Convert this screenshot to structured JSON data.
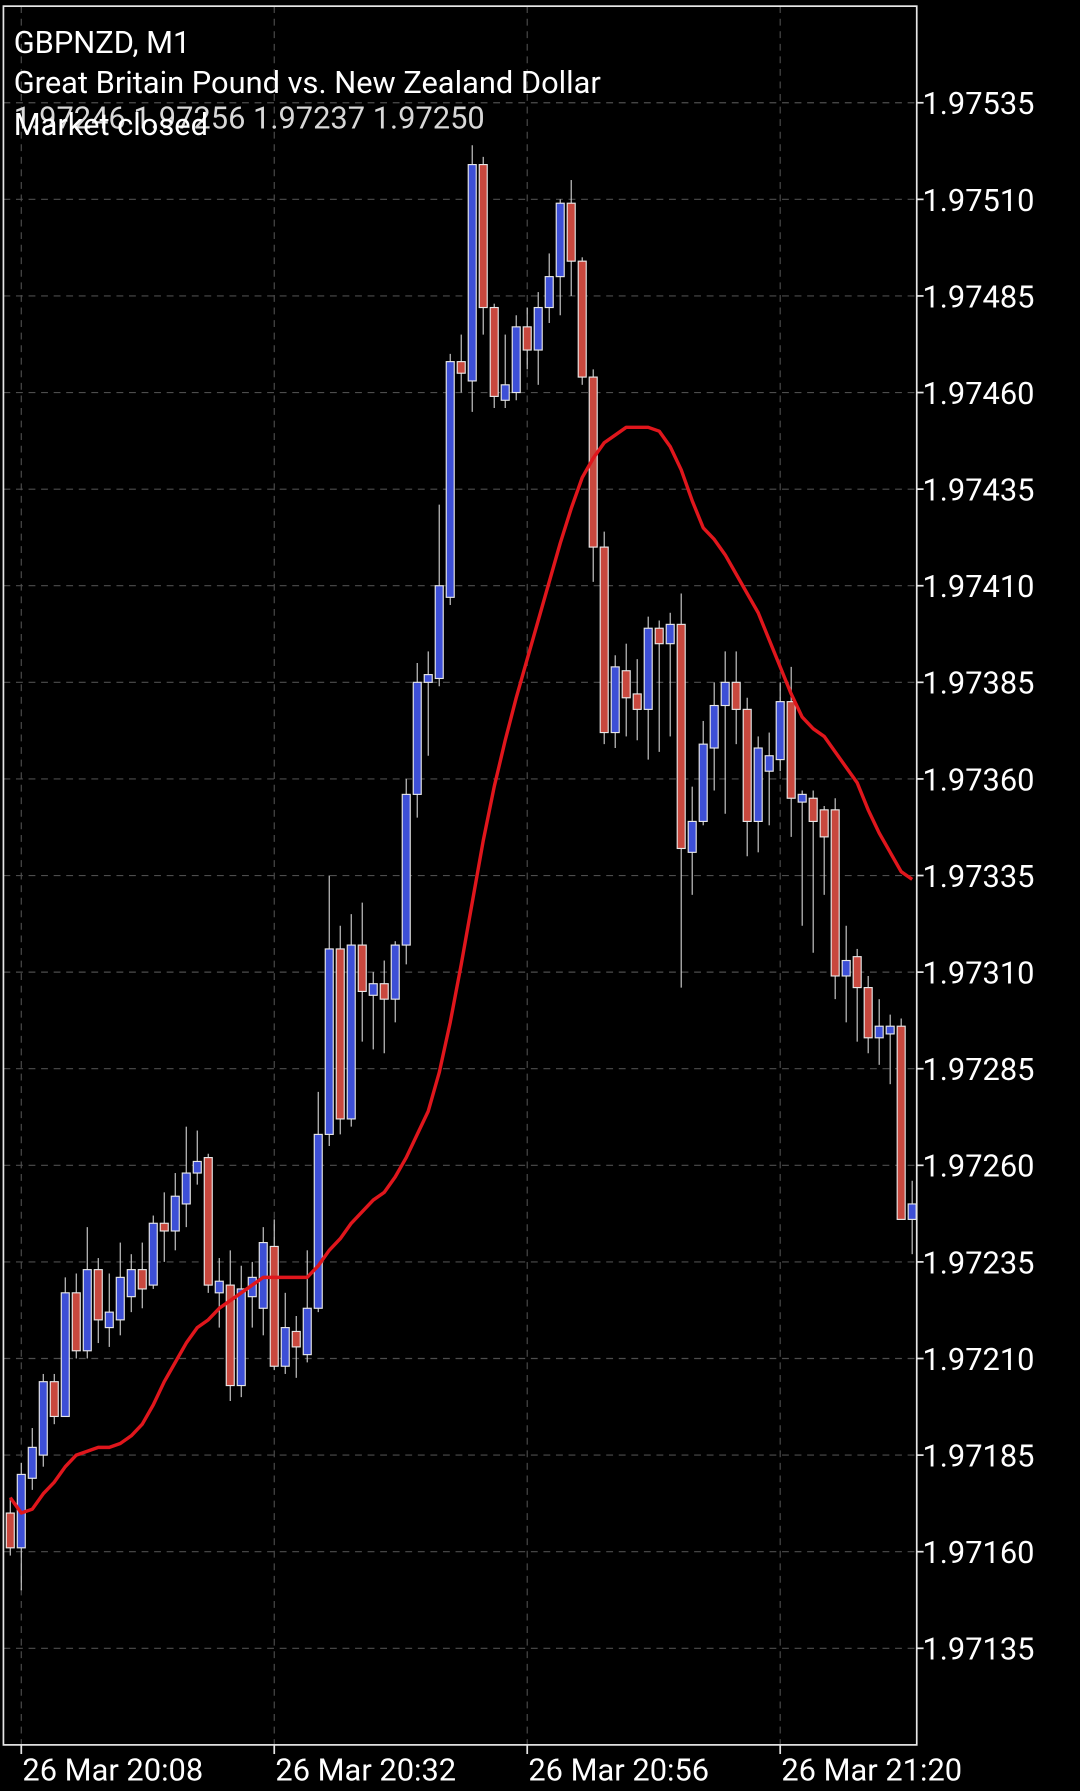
{
  "chart_data": {
    "type": "candlestick",
    "title": "GBPNZD, M1",
    "subtitle": "Great Britain Pound vs. New Zealand Dollar",
    "ohlc_label": "1.97246 1.97256 1.97237 1.97250",
    "status": "Market closed",
    "categories": [
      null,
      "26 Mar 20:08",
      null,
      null,
      null,
      null,
      null,
      null,
      null,
      null,
      null,
      null,
      null,
      null,
      null,
      null,
      null,
      null,
      null,
      null,
      null,
      null,
      null,
      null,
      "26 Mar 20:32",
      null,
      null,
      null,
      null,
      null,
      null,
      null,
      null,
      null,
      null,
      null,
      null,
      null,
      null,
      null,
      null,
      null,
      null,
      null,
      null,
      null,
      null,
      "26 Mar 20:56",
      null,
      null,
      null,
      null,
      null,
      null,
      null,
      null,
      null,
      null,
      null,
      null,
      null,
      null,
      null,
      null,
      null,
      null,
      null,
      null,
      null,
      null,
      "26 Mar 21:20",
      null,
      null,
      null,
      null,
      null,
      null,
      null,
      null,
      null,
      null,
      null,
      null
    ],
    "open": [
      1.9717,
      1.97161,
      1.97179,
      1.97185,
      1.97204,
      1.97195,
      1.97227,
      1.97212,
      1.97233,
      1.97218,
      1.9722,
      1.97226,
      1.97233,
      1.97229,
      1.97245,
      1.97243,
      1.9725,
      1.97258,
      1.97262,
      1.97227,
      1.97229,
      1.97203,
      1.97226,
      1.97223,
      1.97239,
      1.97208,
      1.97217,
      1.97211,
      1.97223,
      1.97268,
      1.97316,
      1.97272,
      1.97317,
      1.97304,
      1.97307,
      1.97303,
      1.97317,
      1.97356,
      1.97385,
      1.97386,
      1.97407,
      1.97468,
      1.97463,
      1.97519,
      1.97482,
      1.97458,
      1.9746,
      1.97477,
      1.97471,
      1.97482,
      1.9749,
      1.97509,
      1.97494,
      1.97464,
      1.9742,
      1.97372,
      1.97388,
      1.97382,
      1.97378,
      1.97399,
      1.97395,
      1.974,
      1.97341,
      1.97349,
      1.97368,
      1.97379,
      1.97385,
      1.97378,
      1.97349,
      1.97362,
      1.97365,
      1.9738,
      1.97354,
      1.97355,
      1.97352,
      1.97352,
      1.97309,
      1.97314,
      1.97306,
      1.97293,
      1.97294,
      1.97296,
      1.97246
    ],
    "high": [
      1.97174,
      1.97183,
      1.97192,
      1.97206,
      1.97206,
      1.97231,
      1.97232,
      1.97244,
      1.97236,
      1.97232,
      1.9724,
      1.97237,
      1.9724,
      1.97247,
      1.97253,
      1.97258,
      1.9727,
      1.97269,
      1.97263,
      1.97236,
      1.97238,
      1.97234,
      1.97235,
      1.97244,
      1.97246,
      1.97227,
      1.97221,
      1.97238,
      1.97279,
      1.97335,
      1.97322,
      1.97325,
      1.97328,
      1.9731,
      1.97313,
      1.97318,
      1.9736,
      1.9739,
      1.97393,
      1.97431,
      1.9747,
      1.97475,
      1.97524,
      1.97521,
      1.97483,
      1.97475,
      1.9748,
      1.97482,
      1.97486,
      1.97496,
      1.9751,
      1.97515,
      1.97495,
      1.97466,
      1.97424,
      1.97392,
      1.97395,
      1.97391,
      1.97402,
      1.97401,
      1.97403,
      1.97408,
      1.97358,
      1.97375,
      1.97385,
      1.97393,
      1.97393,
      1.97381,
      1.97371,
      1.97372,
      1.97385,
      1.97389,
      1.97357,
      1.97357,
      1.97353,
      1.97355,
      1.97322,
      1.97316,
      1.97309,
      1.97303,
      1.97299,
      1.97298,
      1.97256
    ],
    "low": [
      1.97159,
      1.9715,
      1.97176,
      1.97182,
      1.97193,
      1.97195,
      1.9721,
      1.9721,
      1.97214,
      1.97213,
      1.97216,
      1.97222,
      1.97223,
      1.97228,
      1.97235,
      1.97238,
      1.97244,
      1.97255,
      1.97227,
      1.97218,
      1.97199,
      1.972,
      1.97218,
      1.97216,
      1.97207,
      1.97206,
      1.97205,
      1.97209,
      1.97222,
      1.97265,
      1.97268,
      1.9727,
      1.97292,
      1.9729,
      1.97289,
      1.97297,
      1.97312,
      1.9735,
      1.97366,
      1.97384,
      1.97405,
      1.9746,
      1.97455,
      1.97475,
      1.97456,
      1.97456,
      1.97458,
      1.97466,
      1.97462,
      1.97478,
      1.9748,
      1.97485,
      1.97462,
      1.97411,
      1.97369,
      1.97368,
      1.97371,
      1.9737,
      1.97365,
      1.97367,
      1.97371,
      1.97306,
      1.9733,
      1.97348,
      1.97357,
      1.97351,
      1.97369,
      1.9734,
      1.97341,
      1.97348,
      1.97362,
      1.97345,
      1.97322,
      1.97315,
      1.9733,
      1.97303,
      1.97297,
      1.97292,
      1.97289,
      1.97286,
      1.97281,
      1.97246,
      1.97237
    ],
    "close": [
      1.97161,
      1.9718,
      1.97187,
      1.97204,
      1.97195,
      1.97227,
      1.97212,
      1.97233,
      1.9722,
      1.97222,
      1.97231,
      1.97233,
      1.97228,
      1.97245,
      1.97243,
      1.97252,
      1.97258,
      1.97261,
      1.97229,
      1.9723,
      1.97203,
      1.97228,
      1.97231,
      1.9724,
      1.97208,
      1.97218,
      1.97213,
      1.97223,
      1.97268,
      1.97316,
      1.97272,
      1.97317,
      1.97305,
      1.97307,
      1.97303,
      1.97317,
      1.97356,
      1.97385,
      1.97387,
      1.9741,
      1.97468,
      1.97465,
      1.97519,
      1.97482,
      1.97459,
      1.97462,
      1.97477,
      1.97471,
      1.97482,
      1.9749,
      1.97509,
      1.97494,
      1.97464,
      1.9742,
      1.97372,
      1.97389,
      1.97381,
      1.97378,
      1.97399,
      1.97395,
      1.974,
      1.97342,
      1.97349,
      1.97369,
      1.97379,
      1.97385,
      1.97378,
      1.97349,
      1.97368,
      1.97366,
      1.9738,
      1.97355,
      1.97356,
      1.97349,
      1.97345,
      1.97309,
      1.97313,
      1.97306,
      1.97293,
      1.97296,
      1.97296,
      1.97246,
      1.9725
    ],
    "up_color": "#3d4fd6",
    "down_color": "#c8483e",
    "wick_color": "#cfcfcf",
    "overlay": {
      "color": "#e0161c",
      "values": [
        1.97174,
        1.9717,
        1.97171,
        1.97175,
        1.97178,
        1.97182,
        1.97185,
        1.97186,
        1.97187,
        1.97187,
        1.97188,
        1.9719,
        1.97193,
        1.97198,
        1.97204,
        1.97209,
        1.97214,
        1.97218,
        1.9722,
        1.97223,
        1.97225,
        1.97227,
        1.97229,
        1.97231,
        1.97231,
        1.97231,
        1.97231,
        1.97231,
        1.97234,
        1.97238,
        1.97241,
        1.97245,
        1.97248,
        1.97251,
        1.97253,
        1.97257,
        1.97262,
        1.97268,
        1.97274,
        1.97284,
        1.97297,
        1.97312,
        1.97328,
        1.97344,
        1.97358,
        1.9737,
        1.97381,
        1.97391,
        1.97401,
        1.97411,
        1.97421,
        1.9743,
        1.97438,
        1.97443,
        1.97447,
        1.97449,
        1.97451,
        1.97451,
        1.97451,
        1.9745,
        1.97446,
        1.9744,
        1.97432,
        1.97425,
        1.97422,
        1.97418,
        1.97413,
        1.97408,
        1.97403,
        1.97396,
        1.97389,
        1.97382,
        1.97376,
        1.97373,
        1.97371,
        1.97367,
        1.97363,
        1.97359,
        1.97352,
        1.97346,
        1.97341,
        1.97336,
        1.97334
      ]
    },
    "ylim": [
      1.9711,
      1.9756
    ],
    "yticks": [
      1.97135,
      {
        "value": 1.9716,
        "label": "1.97160"
      },
      1.97185,
      {
        "value": 1.9721,
        "label": "1.97210"
      },
      1.97235,
      {
        "value": 1.9726,
        "label": "1.97260"
      },
      1.97285,
      {
        "value": 1.9731,
        "label": "1.97310"
      },
      1.97335,
      {
        "value": 1.9736,
        "label": "1.97360"
      },
      1.97385,
      {
        "value": 1.9741,
        "label": "1.97410"
      },
      1.97435,
      {
        "value": 1.9746,
        "label": "1.97460"
      },
      1.97485,
      {
        "value": 1.9751,
        "label": "1.97510"
      },
      1.97535
    ],
    "grid": true
  }
}
